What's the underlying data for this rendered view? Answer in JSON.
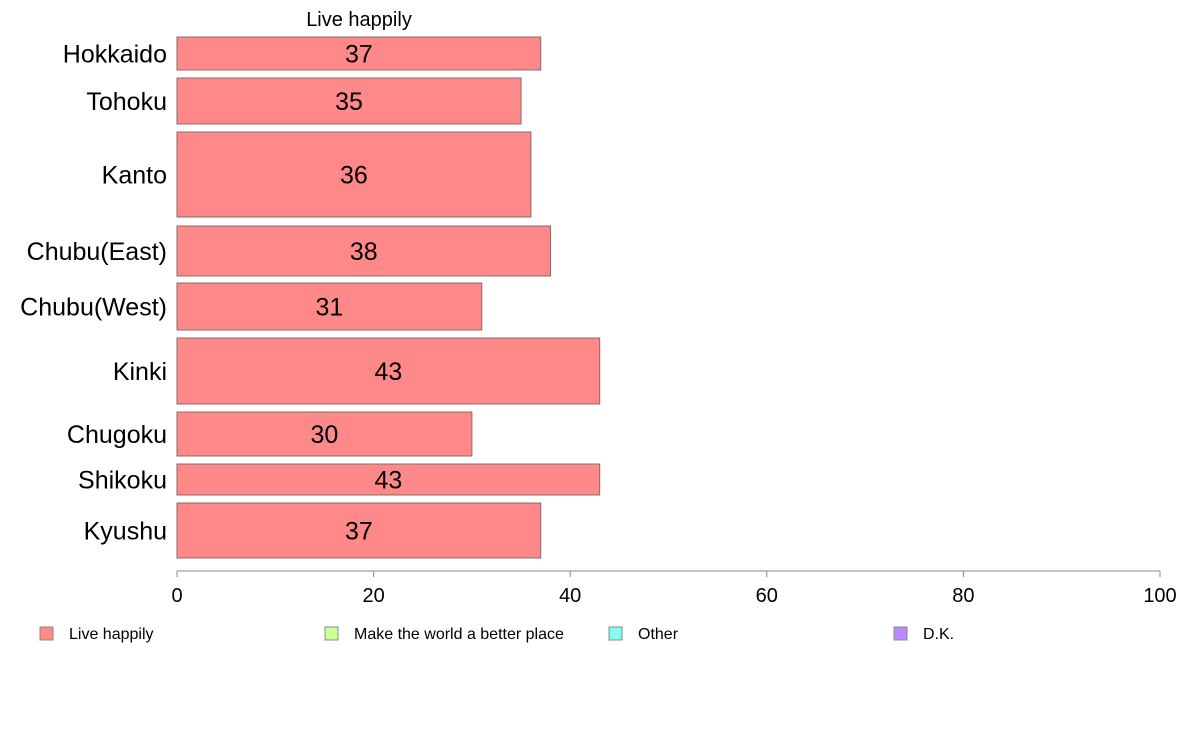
{
  "chart_data": {
    "type": "bar",
    "orientation": "horizontal",
    "title": "Live happily",
    "categories": [
      "Hokkaido",
      "Tohoku",
      "Kanto",
      "Chubu(East)",
      "Chubu(West)",
      "Kinki",
      "Chugoku",
      "Shikoku",
      "Kyushu"
    ],
    "series": [
      {
        "name": "Live happily",
        "values": [
          37,
          35,
          36,
          38,
          31,
          43,
          30,
          43,
          37
        ],
        "color": "#ff8888"
      }
    ],
    "data_labels": [
      "37",
      "35",
      "36",
      "38",
      "31",
      "43",
      "30",
      "43",
      "37"
    ],
    "xlim": [
      0,
      100
    ],
    "x_ticks": [
      0,
      20,
      40,
      60,
      80,
      100
    ],
    "x_tick_labels": [
      "0",
      "20",
      "40",
      "60",
      "80",
      "100"
    ],
    "grid": false,
    "legend_position": "bottom",
    "legend": [
      {
        "label": "Live happily",
        "color": "#ff8888"
      },
      {
        "label": "Make the world a better place",
        "color": "#ccff99"
      },
      {
        "label": "Other",
        "color": "#88ffee"
      },
      {
        "label": "D.K.",
        "color": "#bb88ff"
      }
    ]
  }
}
